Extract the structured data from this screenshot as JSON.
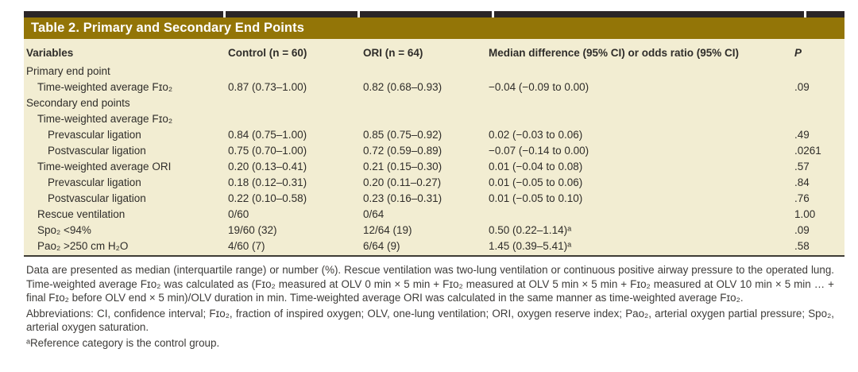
{
  "table": {
    "title": "Table 2. Primary and Secondary End Points",
    "columns": {
      "variables": "Variables",
      "control": "Control (n = 60)",
      "ori": "ORI (n = 64)",
      "diff": "Median difference (95% CI) or odds ratio (95% CI)",
      "p": "P"
    },
    "rows": [
      {
        "label": "Primary end point",
        "indent": 0,
        "control": "",
        "ori": "",
        "diff": "",
        "p": ""
      },
      {
        "label": "Time-weighted average Fɪᴏ₂",
        "indent": 1,
        "control": "0.87 (0.73–1.00)",
        "ori": "0.82 (0.68–0.93)",
        "diff": "−0.04 (−0.09 to 0.00)",
        "p": ".09"
      },
      {
        "label": "Secondary end points",
        "indent": 0,
        "control": "",
        "ori": "",
        "diff": "",
        "p": ""
      },
      {
        "label": "Time-weighted average Fɪᴏ₂",
        "indent": 1,
        "control": "",
        "ori": "",
        "diff": "",
        "p": ""
      },
      {
        "label": "Prevascular ligation",
        "indent": 2,
        "control": "0.84 (0.75–1.00)",
        "ori": "0.85 (0.75–0.92)",
        "diff": "0.02 (−0.03 to 0.06)",
        "p": ".49"
      },
      {
        "label": "Postvascular ligation",
        "indent": 2,
        "control": "0.75 (0.70–1.00)",
        "ori": "0.72 (0.59–0.89)",
        "diff": "−0.07 (−0.14 to 0.00)",
        "p": ".0261"
      },
      {
        "label": "Time-weighted average ORI",
        "indent": 1,
        "control": "0.20 (0.13–0.41)",
        "ori": "0.21 (0.15–0.30)",
        "diff": "0.01 (−0.04 to 0.08)",
        "p": ".57"
      },
      {
        "label": "Prevascular ligation",
        "indent": 2,
        "control": "0.18 (0.12–0.31)",
        "ori": "0.20 (0.11–0.27)",
        "diff": "0.01 (−0.05 to 0.06)",
        "p": ".84"
      },
      {
        "label": "Postvascular ligation",
        "indent": 2,
        "control": "0.22 (0.10–0.58)",
        "ori": "0.23 (0.16–0.31)",
        "diff": "0.01 (−0.05 to 0.10)",
        "p": ".76"
      },
      {
        "label": "Rescue ventilation",
        "indent": 1,
        "control": "0/60",
        "ori": "0/64",
        "diff": "",
        "p": "1.00"
      },
      {
        "label": "Spᴏ₂ <94%",
        "indent": 1,
        "control": "19/60 (32)",
        "ori": "12/64 (19)",
        "diff": "0.50 (0.22–1.14)ᵃ",
        "p": ".09"
      },
      {
        "label": "Paᴏ₂ >250 cm H₂O",
        "indent": 1,
        "control": "4/60 (7)",
        "ori": "6/64 (9)",
        "diff": "1.45 (0.39–5.41)ᵃ",
        "p": ".58"
      }
    ]
  },
  "footnotes": {
    "data_note": "Data are presented as median (interquartile range) or number (%). Rescue ventilation was two-lung ventilation or continuous positive airway pressure to the operated lung. Time-weighted average Fɪᴏ₂ was calculated as (Fɪᴏ₂ measured at OLV 0 min × 5 min + Fɪᴏ₂ measured at OLV 5 min × 5 min + Fɪᴏ₂ measured at OLV 10 min × 5 min … + final Fɪᴏ₂ before OLV end × 5 min)/OLV duration in min. Time-weighted average ORI was calculated in the same manner as time-weighted average Fɪᴏ₂.",
    "abbreviations": "Abbreviations: CI, confidence interval; Fɪᴏ₂, fraction of inspired oxygen; OLV, one-lung ventilation; ORI, oxygen reserve index; Paᴏ₂, arterial oxygen partial pressure; Spᴏ₂, arterial oxygen saturation.",
    "reference_note": "ᵃReference category is the control group."
  },
  "colors": {
    "title_bar_gold": "#937507",
    "top_border_black": "#2a2527",
    "table_body_beige": "#f2edd2",
    "table_text": "#2f2d2a",
    "footnote_text": "#3d3b38"
  }
}
